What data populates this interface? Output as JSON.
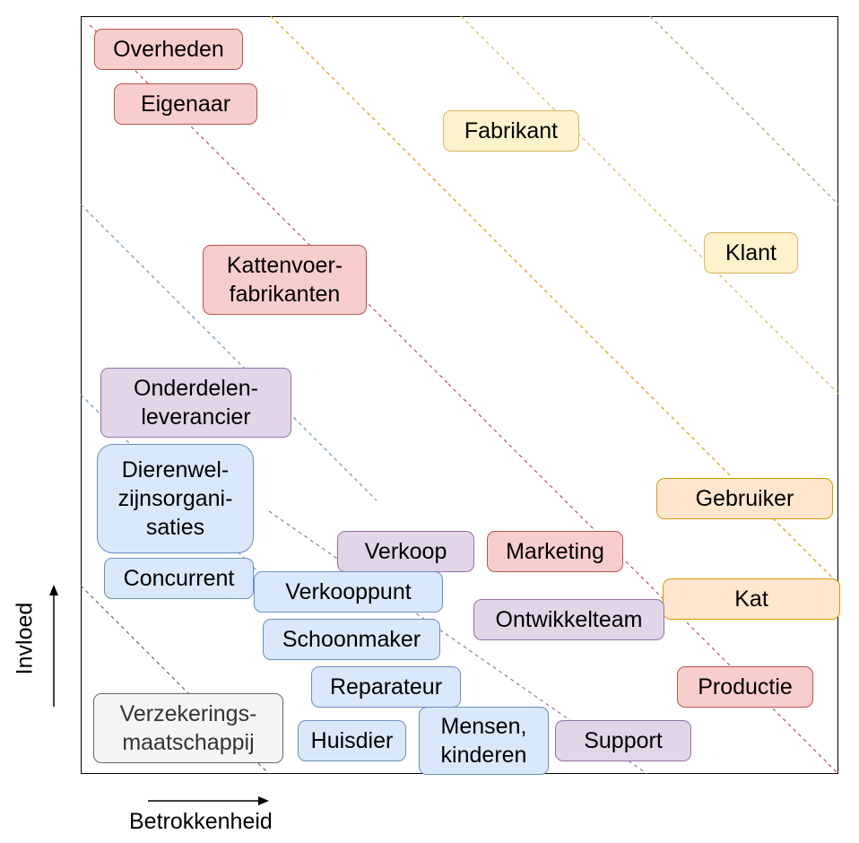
{
  "axes": {
    "x_label": "Betrokkenheid",
    "y_label": "Invloed"
  },
  "zone_line_colors": [
    "#666666",
    "#6c8ebf",
    "#6c8ebf",
    "#9673a6",
    "#b85450",
    "#b85450",
    "#d79b00",
    "#d6b656",
    "#82b366"
  ],
  "stakeholders": {
    "overheden": "Overheden",
    "eigenaar": "Eigenaar",
    "fabrikant": "Fabrikant",
    "klant": "Klant",
    "kattenvoerfabrikanten": "Kattenvoer-\nfabrikanten",
    "onderdelenleverancier": "Onderdelen-\nleverancier",
    "dierenwelzijnsorganisaties": "Dierenwel-\nzijnsorgani-\nsaties",
    "gebruiker": "Gebruiker",
    "verkoop": "Verkoop",
    "marketing": "Marketing",
    "concurrent": "Concurrent",
    "verkooppunt": "Verkooppunt",
    "kat": "Kat",
    "ontwikkelteam": "Ontwikkelteam",
    "schoonmaker": "Schoonmaker",
    "reparateur": "Reparateur",
    "productie": "Productie",
    "verzekeringsmaatschappij": "Verzekerings-\nmaatschappij",
    "huisdier": "Huisdier",
    "mensen_kinderen": "Mensen,\nkinderen",
    "support": "Support"
  }
}
